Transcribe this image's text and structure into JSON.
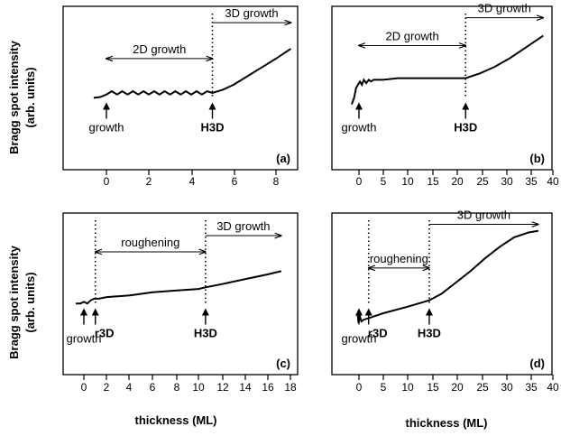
{
  "figure": {
    "ylabel_line1": "Bragg spot intensity",
    "ylabel_line2": "(arb. units)",
    "xlabel": "thickness (ML)"
  },
  "chart_data": [
    {
      "type": "line",
      "panel_label": "(a)",
      "xlim": [
        -1,
        8.8
      ],
      "ylim": [
        0,
        1
      ],
      "xticks": [
        0,
        2,
        4,
        6,
        8
      ],
      "tick_labels": [
        "0",
        "2",
        "4",
        "6",
        "8"
      ],
      "series": [
        {
          "values": [
            {
              "x": -0.6,
              "y": 0.44
            },
            {
              "x": -0.3,
              "y": 0.445
            },
            {
              "x": 0,
              "y": 0.46
            },
            {
              "x": 0.25,
              "y": 0.48
            },
            {
              "x": 0.5,
              "y": 0.46
            },
            {
              "x": 0.75,
              "y": 0.48
            },
            {
              "x": 1.0,
              "y": 0.46
            },
            {
              "x": 1.25,
              "y": 0.48
            },
            {
              "x": 1.5,
              "y": 0.46
            },
            {
              "x": 1.75,
              "y": 0.48
            },
            {
              "x": 2.0,
              "y": 0.46
            },
            {
              "x": 2.25,
              "y": 0.48
            },
            {
              "x": 2.5,
              "y": 0.46
            },
            {
              "x": 2.75,
              "y": 0.48
            },
            {
              "x": 3.0,
              "y": 0.46
            },
            {
              "x": 3.25,
              "y": 0.48
            },
            {
              "x": 3.5,
              "y": 0.46
            },
            {
              "x": 3.75,
              "y": 0.48
            },
            {
              "x": 4.0,
              "y": 0.46
            },
            {
              "x": 4.25,
              "y": 0.48
            },
            {
              "x": 4.5,
              "y": 0.46
            },
            {
              "x": 4.75,
              "y": 0.48
            },
            {
              "x": 5.0,
              "y": 0.47
            },
            {
              "x": 5.5,
              "y": 0.49
            },
            {
              "x": 6.0,
              "y": 0.52
            },
            {
              "x": 6.5,
              "y": 0.56
            },
            {
              "x": 7.0,
              "y": 0.6
            },
            {
              "x": 7.5,
              "y": 0.64
            },
            {
              "x": 8.0,
              "y": 0.68
            },
            {
              "x": 8.7,
              "y": 0.74
            }
          ]
        }
      ],
      "transitions": [
        5
      ],
      "regions": [
        {
          "label": "2D growth",
          "from": 0,
          "to": 5,
          "y": 0.68
        },
        {
          "label": "3D growth",
          "from": 5,
          "to": 8.7,
          "y": 0.9
        }
      ],
      "markers": [
        {
          "label": "growth",
          "x": 0,
          "bold": false
        },
        {
          "label": "H3D",
          "x": 5,
          "bold": true
        }
      ]
    },
    {
      "type": "line",
      "panel_label": "(b)",
      "xlim": [
        -3,
        40
      ],
      "ylim": [
        0,
        1
      ],
      "xticks": [
        0,
        5,
        10,
        15,
        20,
        25,
        30,
        35,
        40
      ],
      "tick_labels": [
        "0",
        "5",
        "10",
        "15",
        "20",
        "25",
        "30",
        "35",
        "40"
      ],
      "series": [
        {
          "values": [
            {
              "x": -1.5,
              "y": 0.4
            },
            {
              "x": -1.0,
              "y": 0.44
            },
            {
              "x": -0.6,
              "y": 0.5
            },
            {
              "x": -0.2,
              "y": 0.52
            },
            {
              "x": 0.2,
              "y": 0.54
            },
            {
              "x": 0.6,
              "y": 0.52
            },
            {
              "x": 1.0,
              "y": 0.55
            },
            {
              "x": 1.5,
              "y": 0.53
            },
            {
              "x": 2.0,
              "y": 0.55
            },
            {
              "x": 2.5,
              "y": 0.54
            },
            {
              "x": 3.0,
              "y": 0.55
            },
            {
              "x": 5.0,
              "y": 0.55
            },
            {
              "x": 8.0,
              "y": 0.56
            },
            {
              "x": 12.0,
              "y": 0.56
            },
            {
              "x": 16.0,
              "y": 0.56
            },
            {
              "x": 20.0,
              "y": 0.56
            },
            {
              "x": 22.0,
              "y": 0.56
            },
            {
              "x": 25.0,
              "y": 0.59
            },
            {
              "x": 28.0,
              "y": 0.63
            },
            {
              "x": 31.0,
              "y": 0.68
            },
            {
              "x": 34.0,
              "y": 0.74
            },
            {
              "x": 37.0,
              "y": 0.8
            },
            {
              "x": 38.0,
              "y": 0.82
            }
          ]
        }
      ],
      "transitions": [
        22
      ],
      "regions": [
        {
          "label": "2D growth",
          "from": 0,
          "to": 22,
          "y": 0.76
        },
        {
          "label": "3D growth",
          "from": 22,
          "to": 38,
          "y": 0.93
        }
      ],
      "markers": [
        {
          "label": "growth",
          "x": 0,
          "bold": false
        },
        {
          "label": "H3D",
          "x": 22,
          "bold": true
        }
      ]
    },
    {
      "type": "line",
      "panel_label": "(c)",
      "xlim": [
        -1.2,
        17.8
      ],
      "ylim": [
        0,
        1
      ],
      "xticks": [
        0,
        2,
        4,
        6,
        8,
        10,
        12,
        14,
        16,
        18
      ],
      "tick_labels": [
        "0",
        "2",
        "4",
        "6",
        "8",
        "10",
        "12",
        "14",
        "16",
        "18"
      ],
      "series": [
        {
          "values": [
            {
              "x": -0.7,
              "y": 0.44
            },
            {
              "x": -0.3,
              "y": 0.44
            },
            {
              "x": 0,
              "y": 0.45
            },
            {
              "x": 0.3,
              "y": 0.44
            },
            {
              "x": 0.6,
              "y": 0.46
            },
            {
              "x": 0.9,
              "y": 0.47
            },
            {
              "x": 1.3,
              "y": 0.47
            },
            {
              "x": 2.0,
              "y": 0.48
            },
            {
              "x": 4.0,
              "y": 0.49
            },
            {
              "x": 6.0,
              "y": 0.51
            },
            {
              "x": 8.0,
              "y": 0.52
            },
            {
              "x": 10.0,
              "y": 0.53
            },
            {
              "x": 10.6,
              "y": 0.54
            },
            {
              "x": 12.0,
              "y": 0.56
            },
            {
              "x": 14.0,
              "y": 0.59
            },
            {
              "x": 16.0,
              "y": 0.62
            },
            {
              "x": 17.2,
              "y": 0.64
            }
          ]
        }
      ],
      "transitions": [
        1,
        10.6
      ],
      "regions": [
        {
          "label": "roughening",
          "from": 1,
          "to": 10.6,
          "y": 0.76
        },
        {
          "label": "3D growth",
          "from": 10.6,
          "to": 17.2,
          "y": 0.86
        }
      ],
      "markers": [
        {
          "label": "growth",
          "x": 0,
          "bold": false,
          "offset": 1
        },
        {
          "label": "r3D",
          "x": 1,
          "bold": true
        },
        {
          "label": "H3D",
          "x": 10.6,
          "bold": true
        }
      ]
    },
    {
      "type": "line",
      "panel_label": "(d)",
      "xlim": [
        -3,
        40
      ],
      "ylim": [
        0,
        1
      ],
      "xticks": [
        0,
        5,
        10,
        15,
        20,
        25,
        30,
        35,
        40
      ],
      "tick_labels": [
        "0",
        "5",
        "10",
        "15",
        "20",
        "25",
        "30",
        "35",
        "40"
      ],
      "series": [
        {
          "values": [
            {
              "x": -0.3,
              "y": 0.38
            },
            {
              "x": -0.1,
              "y": 0.32
            },
            {
              "x": 0.2,
              "y": 0.36
            },
            {
              "x": 0.5,
              "y": 0.33
            },
            {
              "x": 1.0,
              "y": 0.34
            },
            {
              "x": 2.0,
              "y": 0.35
            },
            {
              "x": 5.0,
              "y": 0.38
            },
            {
              "x": 10.0,
              "y": 0.42
            },
            {
              "x": 14.5,
              "y": 0.46
            },
            {
              "x": 17.0,
              "y": 0.5
            },
            {
              "x": 20.0,
              "y": 0.57
            },
            {
              "x": 23.0,
              "y": 0.64
            },
            {
              "x": 26.0,
              "y": 0.72
            },
            {
              "x": 29.0,
              "y": 0.79
            },
            {
              "x": 32.0,
              "y": 0.85
            },
            {
              "x": 35.0,
              "y": 0.88
            },
            {
              "x": 37.0,
              "y": 0.89
            }
          ]
        }
      ],
      "transitions": [
        2,
        14.5
      ],
      "regions": [
        {
          "label": "roughening",
          "from": 2,
          "to": 14.5,
          "y": 0.66
        },
        {
          "label": "3D growth",
          "from": 14.5,
          "to": 37,
          "y": 0.93
        }
      ],
      "markers": [
        {
          "label": "growth",
          "x": 0,
          "bold": false,
          "offset": 1
        },
        {
          "label": "r3D",
          "x": 2,
          "bold": true
        },
        {
          "label": "H3D",
          "x": 14.5,
          "bold": true
        }
      ]
    }
  ]
}
